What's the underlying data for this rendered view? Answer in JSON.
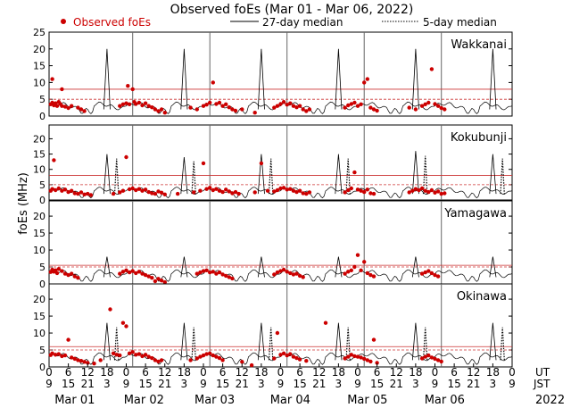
{
  "chart_data": {
    "type": "scatter",
    "title": "Observed foEs (Mar 01 - Mar 06, 2022)",
    "legend": {
      "observed": "Observed foEs",
      "median27": "27-day median",
      "median5": "5-day median",
      "placement": "top"
    },
    "ylabel": "foEs (MHz)",
    "ylim": [
      0,
      25
    ],
    "yticks": [
      0,
      5,
      10,
      15,
      20,
      25
    ],
    "xlim_hours": [
      0,
      144
    ],
    "ut_ticks": [
      "0",
      "6",
      "12",
      "18",
      "0",
      "6",
      "12",
      "18",
      "0",
      "6",
      "12",
      "18",
      "0",
      "6",
      "12",
      "18",
      "0",
      "6",
      "12",
      "18",
      "0",
      "6",
      "12",
      "18",
      "0"
    ],
    "jst_ticks": [
      "9",
      "15",
      "21",
      "3",
      "9",
      "15",
      "21",
      "3",
      "9",
      "15",
      "21",
      "3",
      "9",
      "15",
      "21",
      "3",
      "9",
      "15",
      "21",
      "3",
      "9",
      "15",
      "21",
      "3",
      "9"
    ],
    "ut_label": "UT",
    "jst_label": "JST",
    "days": [
      "Mar 01",
      "Mar 02",
      "Mar 03",
      "Mar 04",
      "Mar 05",
      "Mar 06"
    ],
    "year": "2022",
    "colors": {
      "observed": "#cc0000",
      "reference": "#cc3333",
      "median": "#000000"
    },
    "series_note": "observed points are estimated from the plot",
    "panels": [
      {
        "station": "Wakkanai",
        "ref_lines": [
          5,
          8
        ],
        "spike_peaks": [
          20,
          20,
          20,
          20,
          20,
          20
        ],
        "observed": [
          [
            0.5,
            3.5
          ],
          [
            1,
            4
          ],
          [
            1.5,
            3.2
          ],
          [
            2,
            3.8
          ],
          [
            2.5,
            3
          ],
          [
            3,
            4.2
          ],
          [
            3.5,
            3.6
          ],
          [
            4,
            3
          ],
          [
            5,
            2.8
          ],
          [
            6,
            2.4
          ],
          [
            7,
            3
          ],
          [
            1,
            11
          ],
          [
            4,
            8
          ],
          [
            9,
            2.5
          ],
          [
            10,
            2
          ],
          [
            11,
            1.5
          ],
          [
            22,
            3
          ],
          [
            23,
            3.5
          ],
          [
            24,
            3.8
          ],
          [
            24.5,
            9
          ],
          [
            25,
            3.5
          ],
          [
            26,
            8
          ],
          [
            26.5,
            4.2
          ],
          [
            27,
            3.6
          ],
          [
            28,
            4
          ],
          [
            29,
            3.2
          ],
          [
            30,
            3.8
          ],
          [
            31,
            3
          ],
          [
            32,
            2.6
          ],
          [
            33,
            2
          ],
          [
            34,
            1.5
          ],
          [
            35,
            2
          ],
          [
            36,
            1
          ],
          [
            44,
            2.5
          ],
          [
            46,
            2
          ],
          [
            48,
            3
          ],
          [
            49,
            3.4
          ],
          [
            50,
            4
          ],
          [
            51,
            10
          ],
          [
            52,
            3.6
          ],
          [
            53,
            4
          ],
          [
            54,
            3
          ],
          [
            55,
            3.5
          ],
          [
            56,
            2.6
          ],
          [
            57,
            2
          ],
          [
            58,
            1.6
          ],
          [
            60,
            2
          ],
          [
            64,
            1
          ],
          [
            70,
            2.5
          ],
          [
            71,
            3
          ],
          [
            72,
            3.6
          ],
          [
            73,
            4.2
          ],
          [
            74,
            3.4
          ],
          [
            75,
            3.8
          ],
          [
            76,
            3
          ],
          [
            77,
            2.6
          ],
          [
            78,
            3
          ],
          [
            79,
            2
          ],
          [
            80,
            1.5
          ],
          [
            81,
            2
          ],
          [
            92,
            2.5
          ],
          [
            93,
            3.2
          ],
          [
            94,
            3.6
          ],
          [
            95,
            4
          ],
          [
            96,
            3
          ],
          [
            97,
            3.5
          ],
          [
            98,
            10
          ],
          [
            99,
            11
          ],
          [
            100,
            2.5
          ],
          [
            101,
            2
          ],
          [
            102,
            1.6
          ],
          [
            112,
            2.5
          ],
          [
            114,
            2
          ],
          [
            116,
            3
          ],
          [
            117,
            3.5
          ],
          [
            118,
            4
          ],
          [
            119,
            14
          ],
          [
            120,
            3.6
          ],
          [
            121,
            3
          ],
          [
            122,
            2.4
          ],
          [
            123,
            2
          ]
        ]
      },
      {
        "station": "Kokubunji",
        "ref_lines": [
          5,
          8
        ],
        "spike_peaks": [
          15,
          14,
          15,
          15,
          16,
          15
        ],
        "observed": [
          [
            0.5,
            3
          ],
          [
            1,
            3.6
          ],
          [
            1.5,
            13
          ],
          [
            2,
            3.2
          ],
          [
            3,
            3.8
          ],
          [
            4,
            3
          ],
          [
            5,
            3.4
          ],
          [
            6,
            2.6
          ],
          [
            7,
            3
          ],
          [
            8,
            2.2
          ],
          [
            9,
            2
          ],
          [
            10,
            2.5
          ],
          [
            11,
            1.8
          ],
          [
            12,
            2
          ],
          [
            13,
            1.6
          ],
          [
            20,
            2
          ],
          [
            22,
            2.5
          ],
          [
            23,
            3
          ],
          [
            24,
            14
          ],
          [
            25,
            3.5
          ],
          [
            26,
            3.8
          ],
          [
            27,
            3.2
          ],
          [
            28,
            3.6
          ],
          [
            29,
            3
          ],
          [
            30,
            3.4
          ],
          [
            31,
            2.6
          ],
          [
            32,
            2.2
          ],
          [
            33,
            2
          ],
          [
            34,
            2.8
          ],
          [
            35,
            2.4
          ],
          [
            36,
            1.8
          ],
          [
            40,
            2
          ],
          [
            45,
            2.5
          ],
          [
            47,
            3
          ],
          [
            48,
            12
          ],
          [
            49,
            3.6
          ],
          [
            50,
            4
          ],
          [
            51,
            3.2
          ],
          [
            52,
            3.6
          ],
          [
            53,
            3
          ],
          [
            54,
            2.6
          ],
          [
            55,
            3.4
          ],
          [
            56,
            2.8
          ],
          [
            57,
            2.2
          ],
          [
            58,
            2.6
          ],
          [
            59,
            2
          ],
          [
            64,
            2.5
          ],
          [
            66,
            12
          ],
          [
            68,
            3
          ],
          [
            70,
            2.8
          ],
          [
            71,
            3.2
          ],
          [
            72,
            3.8
          ],
          [
            73,
            4
          ],
          [
            74,
            3.4
          ],
          [
            75,
            3.6
          ],
          [
            76,
            3
          ],
          [
            77,
            2.6
          ],
          [
            78,
            3
          ],
          [
            79,
            2.2
          ],
          [
            80,
            2
          ],
          [
            81,
            2.5
          ],
          [
            92,
            2.5
          ],
          [
            93,
            3.2
          ],
          [
            94,
            3.8
          ],
          [
            95,
            9
          ],
          [
            96,
            3.4
          ],
          [
            97,
            3
          ],
          [
            98,
            2.6
          ],
          [
            99,
            3.4
          ],
          [
            100,
            2.2
          ],
          [
            101,
            2
          ],
          [
            112,
            2.5
          ],
          [
            113,
            3
          ],
          [
            114,
            3.6
          ],
          [
            115,
            3.2
          ],
          [
            116,
            3.8
          ],
          [
            117,
            3
          ],
          [
            118,
            2.6
          ],
          [
            119,
            3.2
          ],
          [
            120,
            2.4
          ],
          [
            121,
            2.8
          ],
          [
            122,
            2
          ],
          [
            123,
            2.2
          ]
        ]
      },
      {
        "station": "Yamagawa",
        "ref_lines": [
          5,
          5.5
        ],
        "spike_peaks": [
          8,
          8,
          8,
          8,
          8,
          8
        ],
        "observed": [
          [
            0.5,
            3.5
          ],
          [
            1,
            4.2
          ],
          [
            1.5,
            3.6
          ],
          [
            2,
            4
          ],
          [
            2.5,
            3.2
          ],
          [
            3,
            4.4
          ],
          [
            4,
            3.8
          ],
          [
            5,
            3
          ],
          [
            6,
            2.6
          ],
          [
            7,
            3
          ],
          [
            8,
            2.2
          ],
          [
            9,
            1.8
          ],
          [
            22,
            3
          ],
          [
            23,
            3.6
          ],
          [
            24,
            4
          ],
          [
            25,
            3.4
          ],
          [
            26,
            3.8
          ],
          [
            27,
            3.2
          ],
          [
            28,
            3.6
          ],
          [
            29,
            3
          ],
          [
            30,
            2.6
          ],
          [
            31,
            2.2
          ],
          [
            32,
            1.8
          ],
          [
            33,
            0.8
          ],
          [
            34,
            1.5
          ],
          [
            35,
            1
          ],
          [
            36,
            0.5
          ],
          [
            46,
            3
          ],
          [
            47,
            3.4
          ],
          [
            48,
            3.8
          ],
          [
            49,
            4
          ],
          [
            50,
            3.4
          ],
          [
            51,
            3.6
          ],
          [
            52,
            3
          ],
          [
            53,
            3.4
          ],
          [
            54,
            2.8
          ],
          [
            55,
            2.4
          ],
          [
            56,
            2
          ],
          [
            57,
            1.6
          ],
          [
            70,
            2.8
          ],
          [
            71,
            3.4
          ],
          [
            72,
            3.8
          ],
          [
            73,
            4.2
          ],
          [
            74,
            3.6
          ],
          [
            75,
            3.2
          ],
          [
            76,
            2.8
          ],
          [
            77,
            3
          ],
          [
            78,
            2.4
          ],
          [
            79,
            2
          ],
          [
            92,
            3
          ],
          [
            93,
            3.6
          ],
          [
            94,
            4
          ],
          [
            95,
            5
          ],
          [
            96,
            8.5
          ],
          [
            97,
            4
          ],
          [
            98,
            6.5
          ],
          [
            99,
            3.2
          ],
          [
            100,
            2.6
          ],
          [
            101,
            2.2
          ],
          [
            116,
            3
          ],
          [
            117,
            3.4
          ],
          [
            118,
            3.8
          ],
          [
            119,
            3.2
          ],
          [
            120,
            2.6
          ],
          [
            121,
            2.2
          ]
        ]
      },
      {
        "station": "Okinawa",
        "ref_lines": [
          5,
          6
        ],
        "spike_peaks": [
          13,
          13,
          13,
          13,
          13,
          13
        ],
        "observed": [
          [
            0.5,
            3.5
          ],
          [
            1,
            4
          ],
          [
            2,
            3.6
          ],
          [
            3,
            3.8
          ],
          [
            4,
            3.2
          ],
          [
            5,
            3.4
          ],
          [
            6,
            8
          ],
          [
            7,
            2.8
          ],
          [
            8,
            2.4
          ],
          [
            9,
            2
          ],
          [
            10,
            1.8
          ],
          [
            11,
            1.5
          ],
          [
            12,
            1.2
          ],
          [
            14,
            1
          ],
          [
            16,
            2
          ],
          [
            19,
            17
          ],
          [
            20,
            4
          ],
          [
            21,
            3.6
          ],
          [
            22,
            3.4
          ],
          [
            23,
            13
          ],
          [
            24,
            12
          ],
          [
            25,
            4
          ],
          [
            26,
            4.4
          ],
          [
            27,
            3.6
          ],
          [
            28,
            3.8
          ],
          [
            29,
            3.2
          ],
          [
            30,
            3.6
          ],
          [
            31,
            3
          ],
          [
            32,
            2.6
          ],
          [
            33,
            2
          ],
          [
            34,
            1.6
          ],
          [
            35,
            2
          ],
          [
            44,
            2
          ],
          [
            46,
            2.5
          ],
          [
            47,
            3
          ],
          [
            48,
            3.4
          ],
          [
            49,
            3.8
          ],
          [
            50,
            4
          ],
          [
            51,
            3.4
          ],
          [
            52,
            3
          ],
          [
            53,
            2.6
          ],
          [
            54,
            2
          ],
          [
            60,
            1.5
          ],
          [
            63,
            0.5
          ],
          [
            70,
            2.5
          ],
          [
            71,
            10
          ],
          [
            72,
            3.6
          ],
          [
            73,
            4
          ],
          [
            74,
            3.4
          ],
          [
            75,
            3.8
          ],
          [
            76,
            3
          ],
          [
            77,
            2.6
          ],
          [
            78,
            2.2
          ],
          [
            80,
            1.8
          ],
          [
            86,
            13
          ],
          [
            92,
            2.5
          ],
          [
            93,
            3
          ],
          [
            94,
            3.6
          ],
          [
            95,
            3.2
          ],
          [
            96,
            3
          ],
          [
            97,
            2.8
          ],
          [
            98,
            2.4
          ],
          [
            99,
            2
          ],
          [
            100,
            1.6
          ],
          [
            101,
            8
          ],
          [
            102,
            1.2
          ],
          [
            116,
            2.5
          ],
          [
            117,
            3
          ],
          [
            118,
            3.4
          ],
          [
            119,
            2.8
          ],
          [
            120,
            2.4
          ],
          [
            121,
            2
          ],
          [
            122,
            1.6
          ]
        ]
      }
    ]
  }
}
